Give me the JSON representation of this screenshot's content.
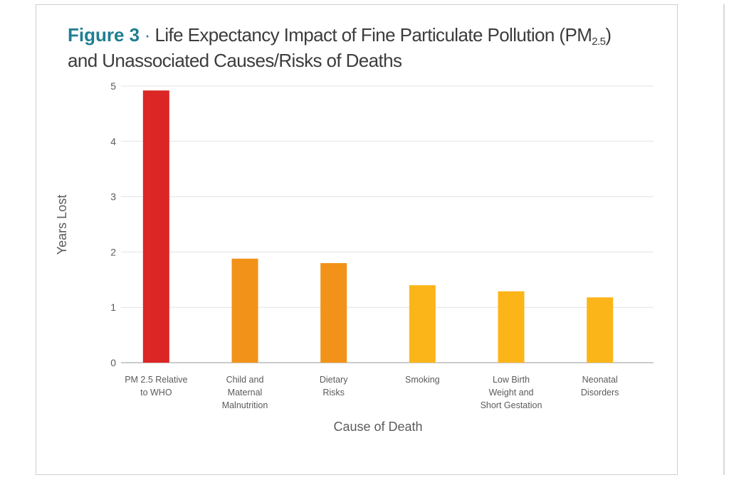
{
  "title": {
    "figure_label": "Figure 3",
    "separator": "·",
    "line1_text": "Life Expectancy Impact of Fine Particulate Pollution (PM",
    "line1_subscript": "2.5",
    "line1_close": ")",
    "line2_text": "and Unassociated Causes/Risks of Deaths"
  },
  "colors": {
    "red": "#dc2626",
    "orange": "#f29218",
    "yellow": "#fcb519",
    "grid": "#e3e3e3",
    "axis": "#9a9a9a"
  },
  "chart_data": {
    "type": "bar",
    "title": "Life Expectancy Impact of Fine Particulate Pollution (PM2.5) and Unassociated Causes/Risks of Deaths",
    "xlabel": "Cause of Death",
    "ylabel": "Years Lost",
    "ylim": [
      0,
      5
    ],
    "yticks": [
      "0",
      "1",
      "2",
      "3",
      "4",
      "5"
    ],
    "grid": true,
    "categories": [
      [
        "PM 2.5 Relative",
        "to WHO"
      ],
      [
        "Child and",
        "Maternal",
        "Malnutrition"
      ],
      [
        "Dietary",
        "Risks"
      ],
      [
        "Smoking"
      ],
      [
        "Low Birth",
        "Weight and",
        "Short Gestation"
      ],
      [
        "Neonatal",
        "Disorders"
      ]
    ],
    "values": [
      4.92,
      1.88,
      1.8,
      1.4,
      1.29,
      1.18
    ],
    "bar_colors": [
      "red",
      "orange",
      "orange",
      "yellow",
      "yellow",
      "yellow"
    ]
  }
}
